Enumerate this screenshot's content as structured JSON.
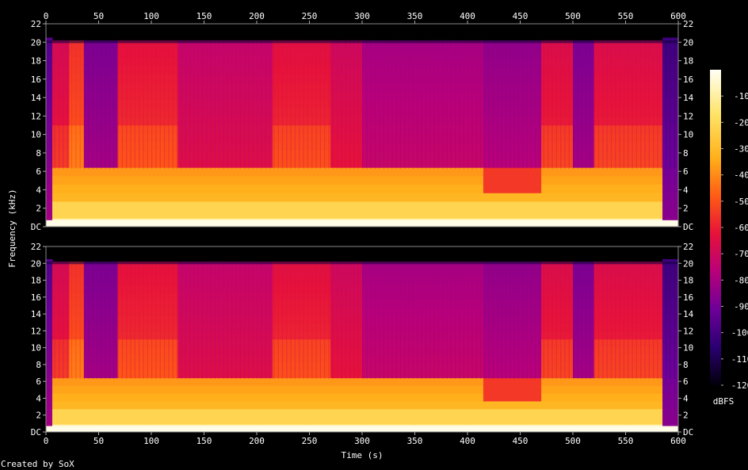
{
  "chart_data": {
    "type": "heatmap",
    "subtype": "spectrogram",
    "xlabel": "Time (s)",
    "ylabel": "Frequency (kHz)",
    "xlim": [
      0,
      600
    ],
    "ylim": [
      0,
      22
    ],
    "x_ticks": [
      0,
      50,
      100,
      150,
      200,
      250,
      300,
      350,
      400,
      450,
      500,
      550,
      600
    ],
    "x_tick_labels": [
      "0",
      "50",
      "100",
      "150",
      "200",
      "250",
      "300",
      "350",
      "400",
      "450",
      "500",
      "550",
      "600"
    ],
    "y_ticks": [
      0,
      2,
      4,
      6,
      8,
      10,
      12,
      14,
      16,
      18,
      20,
      22
    ],
    "channels": [
      {
        "y_tick_labels": [
          "DC",
          "2",
          "4",
          "6",
          "8",
          "10",
          "12",
          "14",
          "16",
          "18",
          "20",
          "22"
        ]
      },
      {
        "y_tick_labels": [
          "DC",
          "2",
          "4",
          "6",
          "8",
          "10",
          "12",
          "14",
          "16",
          "18",
          "20",
          "22"
        ]
      }
    ],
    "colorbar": {
      "label": "dBFS",
      "range": [
        -120,
        0
      ],
      "ticks": [
        -10,
        -20,
        -30,
        -40,
        -50,
        -60,
        -70,
        -80,
        -90,
        -100,
        -110,
        -120
      ],
      "tick_labels": [
        "-10",
        "-20",
        "-30",
        "-40",
        "-50",
        "-60",
        "-70",
        "-80",
        "-90",
        "-100",
        "-110",
        "-120"
      ]
    },
    "segments": [
      {
        "t0": 0,
        "t1": 6,
        "level": -90
      },
      {
        "t0": 6,
        "t1": 22,
        "level": -60
      },
      {
        "t0": 22,
        "t1": 36,
        "level": -48
      },
      {
        "t0": 36,
        "t1": 68,
        "level": -80
      },
      {
        "t0": 68,
        "t1": 125,
        "level": -55
      },
      {
        "t0": 125,
        "t1": 215,
        "level": -65
      },
      {
        "t0": 215,
        "t1": 270,
        "level": -56
      },
      {
        "t0": 270,
        "t1": 300,
        "level": -62
      },
      {
        "t0": 300,
        "t1": 415,
        "level": -72
      },
      {
        "t0": 415,
        "t1": 470,
        "level": -76
      },
      {
        "t0": 470,
        "t1": 500,
        "level": -58
      },
      {
        "t0": 500,
        "t1": 520,
        "level": -80
      },
      {
        "t0": 520,
        "t1": 585,
        "level": -58
      },
      {
        "t0": 585,
        "t1": 600,
        "level": -95
      }
    ],
    "credit": "Created by SoX"
  }
}
